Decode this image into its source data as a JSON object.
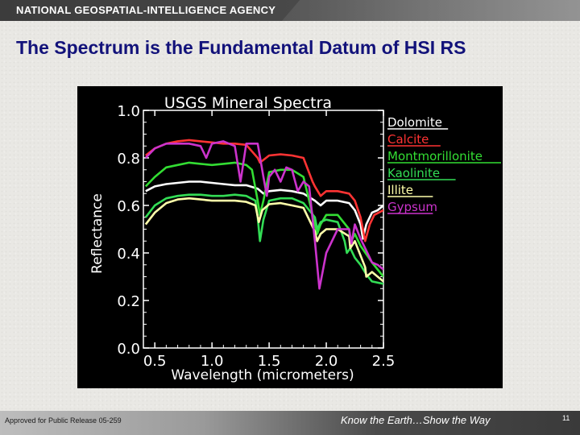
{
  "header": {
    "agency": "NATIONAL GEOSPATIAL-INTELLIGENCE AGENCY"
  },
  "slide": {
    "title": "The Spectrum is the Fundamental Datum of HSI RS"
  },
  "footer": {
    "release": "Approved for Public Release 05-259",
    "slogan": "Know the Earth…Show the Way",
    "page_number": "11"
  },
  "chart_data": {
    "type": "line",
    "title": "USGS Mineral Spectra",
    "xlabel": "Wavelength (micrometers)",
    "ylabel": "Reflectance",
    "xlim": [
      0.4,
      2.5
    ],
    "ylim": [
      0.0,
      1.0
    ],
    "xticks": [
      0.5,
      1.0,
      1.5,
      2.0,
      2.5
    ],
    "xtick_labels": [
      "0.5",
      "1.0",
      "1.5",
      "2.0",
      "2.5"
    ],
    "yticks": [
      0.0,
      0.2,
      0.4,
      0.6,
      0.8,
      1.0
    ],
    "ytick_labels": [
      "0.0",
      "0.2",
      "0.4",
      "0.6",
      "0.8",
      "1.0"
    ],
    "grid": false,
    "legend": "right",
    "background": "#000000",
    "axis_color": "#ffffff",
    "series": [
      {
        "name": "Dolomite",
        "color": "#ffffff",
        "x": [
          0.42,
          0.5,
          0.6,
          0.7,
          0.8,
          0.9,
          1.0,
          1.1,
          1.2,
          1.3,
          1.4,
          1.45,
          1.5,
          1.6,
          1.7,
          1.8,
          1.9,
          1.95,
          2.0,
          2.1,
          2.2,
          2.25,
          2.3,
          2.32,
          2.35,
          2.4,
          2.45,
          2.5
        ],
        "y": [
          0.66,
          0.68,
          0.69,
          0.695,
          0.7,
          0.7,
          0.695,
          0.69,
          0.685,
          0.685,
          0.67,
          0.65,
          0.66,
          0.665,
          0.66,
          0.65,
          0.62,
          0.6,
          0.62,
          0.62,
          0.61,
          0.58,
          0.52,
          0.46,
          0.52,
          0.57,
          0.58,
          0.6
        ]
      },
      {
        "name": "Calcite",
        "color": "#ff3333",
        "x": [
          0.42,
          0.5,
          0.6,
          0.7,
          0.8,
          0.9,
          1.0,
          1.1,
          1.2,
          1.3,
          1.4,
          1.42,
          1.5,
          1.6,
          1.7,
          1.8,
          1.88,
          1.9,
          1.95,
          2.0,
          2.1,
          2.2,
          2.25,
          2.3,
          2.34,
          2.38,
          2.42,
          2.5
        ],
        "y": [
          0.81,
          0.84,
          0.86,
          0.87,
          0.875,
          0.87,
          0.865,
          0.86,
          0.86,
          0.855,
          0.8,
          0.78,
          0.81,
          0.815,
          0.81,
          0.8,
          0.7,
          0.68,
          0.64,
          0.66,
          0.66,
          0.65,
          0.62,
          0.55,
          0.45,
          0.52,
          0.56,
          0.58
        ]
      },
      {
        "name": "Montmorillonite",
        "color": "#33dd33",
        "x": [
          0.42,
          0.5,
          0.6,
          0.7,
          0.8,
          0.9,
          1.0,
          1.1,
          1.2,
          1.3,
          1.35,
          1.4,
          1.42,
          1.45,
          1.5,
          1.6,
          1.7,
          1.8,
          1.9,
          1.92,
          1.95,
          2.0,
          2.1,
          2.2,
          2.21,
          2.25,
          2.3,
          2.4,
          2.5
        ],
        "y": [
          0.68,
          0.72,
          0.76,
          0.77,
          0.78,
          0.775,
          0.77,
          0.775,
          0.78,
          0.77,
          0.75,
          0.62,
          0.56,
          0.62,
          0.74,
          0.75,
          0.75,
          0.72,
          0.52,
          0.48,
          0.52,
          0.56,
          0.56,
          0.5,
          0.44,
          0.48,
          0.43,
          0.36,
          0.3
        ]
      },
      {
        "name": "Kaolinite",
        "color": "#33dd55",
        "x": [
          0.42,
          0.5,
          0.6,
          0.7,
          0.8,
          0.9,
          1.0,
          1.1,
          1.2,
          1.3,
          1.38,
          1.4,
          1.42,
          1.45,
          1.5,
          1.6,
          1.7,
          1.8,
          1.9,
          1.92,
          1.95,
          2.0,
          2.1,
          2.16,
          2.18,
          2.21,
          2.25,
          2.3,
          2.35,
          2.4,
          2.5
        ],
        "y": [
          0.55,
          0.6,
          0.63,
          0.64,
          0.645,
          0.645,
          0.64,
          0.64,
          0.645,
          0.64,
          0.62,
          0.55,
          0.45,
          0.54,
          0.62,
          0.63,
          0.63,
          0.61,
          0.55,
          0.5,
          0.53,
          0.54,
          0.53,
          0.45,
          0.4,
          0.42,
          0.38,
          0.35,
          0.31,
          0.28,
          0.27
        ]
      },
      {
        "name": "Illite",
        "color": "#ffffaa",
        "x": [
          0.42,
          0.5,
          0.6,
          0.7,
          0.8,
          0.9,
          1.0,
          1.1,
          1.2,
          1.3,
          1.38,
          1.41,
          1.44,
          1.5,
          1.6,
          1.7,
          1.8,
          1.9,
          1.92,
          1.95,
          2.0,
          2.1,
          2.2,
          2.21,
          2.25,
          2.34,
          2.35,
          2.4,
          2.5
        ],
        "y": [
          0.52,
          0.57,
          0.61,
          0.625,
          0.63,
          0.625,
          0.62,
          0.62,
          0.62,
          0.615,
          0.6,
          0.53,
          0.58,
          0.605,
          0.61,
          0.6,
          0.59,
          0.49,
          0.45,
          0.48,
          0.5,
          0.5,
          0.47,
          0.42,
          0.45,
          0.34,
          0.3,
          0.32,
          0.28
        ]
      },
      {
        "name": "Gypsum",
        "color": "#cc33cc",
        "x": [
          0.42,
          0.5,
          0.6,
          0.7,
          0.8,
          0.9,
          0.95,
          1.0,
          1.1,
          1.2,
          1.25,
          1.3,
          1.4,
          1.45,
          1.48,
          1.5,
          1.55,
          1.6,
          1.65,
          1.7,
          1.75,
          1.8,
          1.85,
          1.9,
          1.94,
          2.0,
          2.1,
          2.2,
          2.22,
          2.25,
          2.3,
          2.4,
          2.45,
          2.5
        ],
        "y": [
          0.8,
          0.84,
          0.86,
          0.86,
          0.86,
          0.85,
          0.8,
          0.86,
          0.87,
          0.85,
          0.7,
          0.86,
          0.86,
          0.72,
          0.64,
          0.72,
          0.75,
          0.7,
          0.76,
          0.75,
          0.66,
          0.7,
          0.68,
          0.45,
          0.25,
          0.4,
          0.5,
          0.5,
          0.44,
          0.52,
          0.46,
          0.36,
          0.35,
          0.33
        ]
      }
    ]
  }
}
